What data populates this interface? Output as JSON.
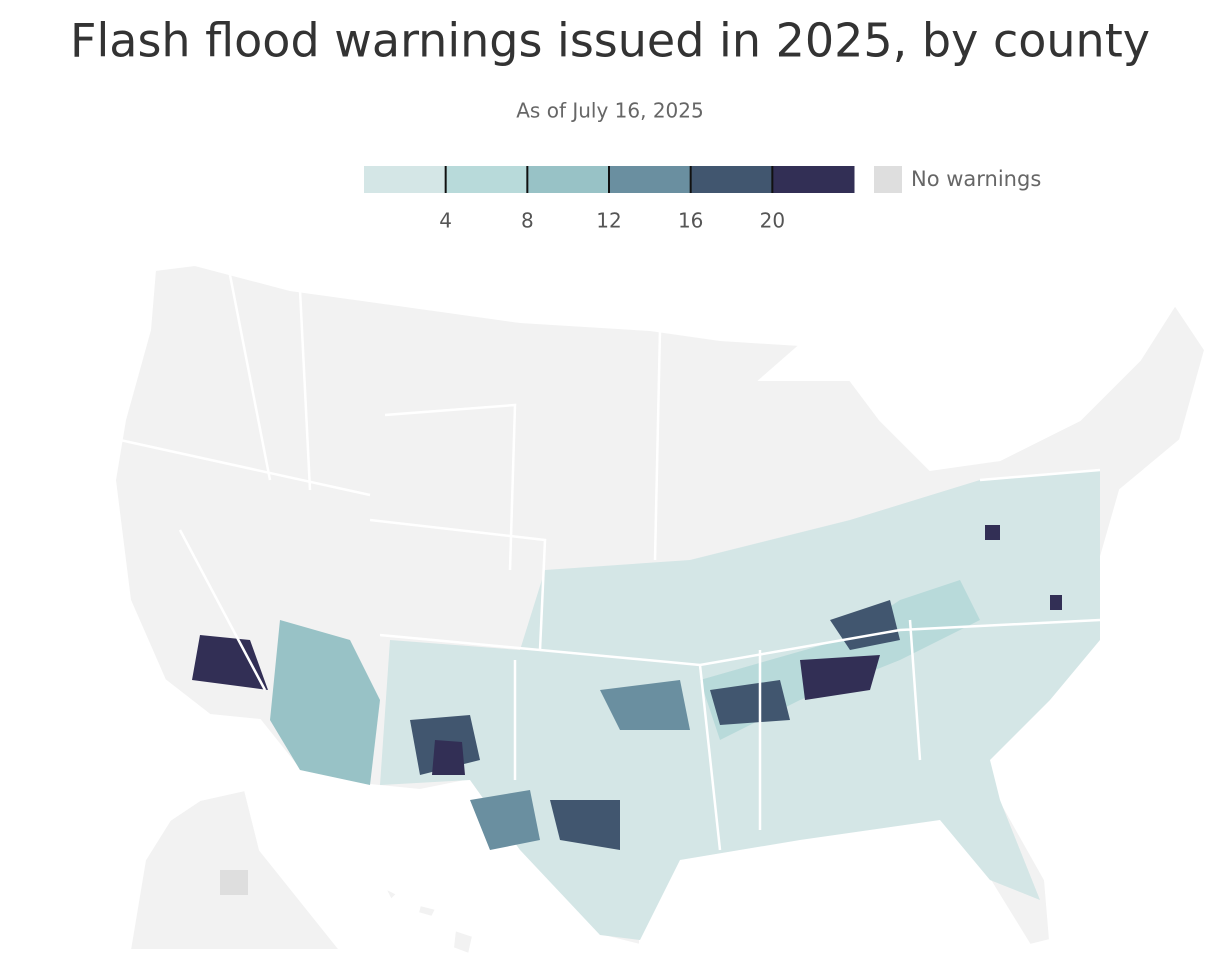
{
  "title": "Flash flood warnings issued in 2025, by county",
  "subtitle": "As of July 16, 2025",
  "legend": {
    "colors": [
      "#d4e6e6",
      "#b8dada",
      "#98c2c6",
      "#6a8fa0",
      "#41566f",
      "#322f55"
    ],
    "ticks": [
      4,
      8,
      12,
      16,
      20
    ],
    "no_data_label": "No warnings",
    "no_data_color": "#dedede"
  }
}
